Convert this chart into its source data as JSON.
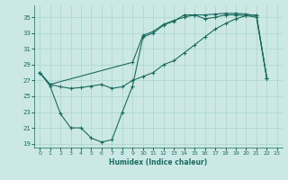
{
  "xlabel": "Humidex (Indice chaleur)",
  "bg_color": "#cce8e4",
  "grid_color": "#aad4ce",
  "line_color": "#1a6b60",
  "xlim": [
    -0.5,
    23.5
  ],
  "ylim": [
    18.5,
    36.5
  ],
  "yticks": [
    19,
    21,
    23,
    25,
    27,
    29,
    31,
    33,
    35
  ],
  "xticks": [
    0,
    1,
    2,
    3,
    4,
    5,
    6,
    7,
    8,
    9,
    10,
    11,
    12,
    13,
    14,
    15,
    16,
    17,
    18,
    19,
    20,
    21,
    22,
    23
  ],
  "line_upper_x": [
    0,
    1,
    2,
    3,
    4,
    5,
    6,
    7,
    8,
    9,
    10,
    11,
    12,
    13,
    14,
    15,
    16,
    17,
    18,
    19,
    20,
    21,
    22
  ],
  "line_upper_y": [
    28.0,
    26.5,
    26.2,
    26.0,
    26.1,
    26.3,
    26.5,
    26.0,
    26.2,
    27.0,
    27.5,
    28.0,
    29.0,
    29.5,
    30.5,
    31.5,
    32.5,
    33.5,
    34.2,
    34.8,
    35.2,
    35.3,
    27.3
  ],
  "line_mid_x": [
    0,
    1,
    9,
    10,
    11,
    12,
    13,
    14,
    15,
    16,
    17,
    18,
    19,
    20,
    21,
    22
  ],
  "line_mid_y": [
    28.0,
    26.5,
    29.3,
    32.7,
    33.2,
    34.1,
    34.6,
    35.0,
    35.3,
    35.3,
    35.4,
    35.5,
    35.5,
    35.4,
    35.2,
    27.3
  ],
  "line_lower_x": [
    0,
    1,
    2,
    3,
    4,
    5,
    6,
    7,
    8,
    9,
    10,
    11,
    12,
    13,
    14,
    15,
    16,
    17,
    18,
    19,
    20,
    21,
    22
  ],
  "line_lower_y": [
    28.0,
    26.3,
    22.8,
    21.0,
    21.0,
    19.7,
    19.2,
    19.5,
    23.0,
    26.3,
    32.5,
    33.0,
    34.0,
    34.5,
    35.3,
    35.3,
    34.8,
    35.0,
    35.3,
    35.3,
    35.2,
    35.0,
    27.3
  ]
}
